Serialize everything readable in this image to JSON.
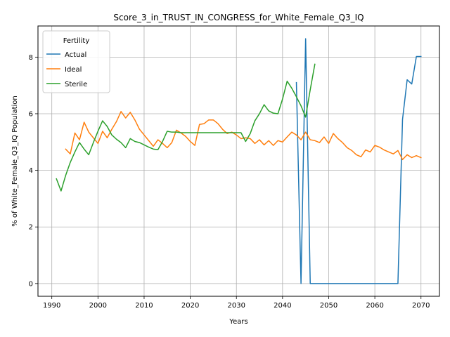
{
  "chart_data": {
    "type": "line",
    "title": "Score_3_in_TRUST_IN_CONGRESS_for_White_Female_Q3_IQ",
    "xlabel": "Years",
    "ylabel": "% of White_Female_Q3_IQ Population",
    "xlim": [
      1987,
      2074
    ],
    "ylim": [
      -0.45,
      9.1
    ],
    "x_ticks": [
      1990,
      2000,
      2010,
      2020,
      2030,
      2040,
      2050,
      2060,
      2070
    ],
    "y_ticks": [
      0,
      2,
      4,
      6,
      8
    ],
    "grid": true,
    "legend": {
      "title": "Fertility",
      "placement": "top-left"
    },
    "series": [
      {
        "name": "Actual",
        "color": "#1f77b4",
        "x": [
          2043,
          2044,
          2045,
          2046,
          2047,
          2048,
          2049,
          2050,
          2051,
          2052,
          2053,
          2054,
          2055,
          2056,
          2057,
          2058,
          2059,
          2060,
          2061,
          2062,
          2063,
          2064,
          2065,
          2066,
          2067,
          2068,
          2069,
          2070
        ],
        "y": [
          7.1,
          0.0,
          8.65,
          0.0,
          0.0,
          0.0,
          0.0,
          0.0,
          0.0,
          0.0,
          0.0,
          0.0,
          0.0,
          0.0,
          0.0,
          0.0,
          0.0,
          0.0,
          0.0,
          0.0,
          0.0,
          0.0,
          0.0,
          5.8,
          7.2,
          7.05,
          8.02,
          8.02
        ]
      },
      {
        "name": "Ideal",
        "color": "#ff7f0e",
        "x": [
          1993,
          1994,
          1995,
          1996,
          1997,
          1998,
          1999,
          2000,
          2001,
          2002,
          2003,
          2004,
          2005,
          2006,
          2007,
          2008,
          2009,
          2010,
          2011,
          2012,
          2013,
          2014,
          2015,
          2016,
          2017,
          2018,
          2019,
          2020,
          2021,
          2022,
          2023,
          2024,
          2025,
          2026,
          2027,
          2028,
          2029,
          2030,
          2031,
          2032,
          2033,
          2034,
          2035,
          2036,
          2037,
          2038,
          2039,
          2040,
          2041,
          2042,
          2043,
          2044,
          2045,
          2046,
          2047,
          2048,
          2049,
          2050,
          2051,
          2052,
          2053,
          2054,
          2055,
          2056,
          2057,
          2058,
          2059,
          2060,
          2061,
          2062,
          2063,
          2064,
          2065,
          2066,
          2067,
          2068,
          2069,
          2070
        ],
        "y": [
          4.75,
          4.58,
          5.32,
          5.08,
          5.7,
          5.35,
          5.15,
          4.95,
          5.38,
          5.15,
          5.45,
          5.72,
          6.08,
          5.85,
          6.05,
          5.78,
          5.45,
          5.25,
          5.05,
          4.85,
          5.08,
          4.95,
          4.8,
          4.98,
          5.42,
          5.32,
          5.2,
          5.02,
          4.88,
          5.62,
          5.65,
          5.78,
          5.78,
          5.65,
          5.45,
          5.3,
          5.35,
          5.25,
          5.12,
          5.15,
          5.12,
          4.95,
          5.08,
          4.9,
          5.05,
          4.88,
          5.05,
          5.0,
          5.18,
          5.35,
          5.25,
          5.08,
          5.35,
          5.08,
          5.05,
          4.98,
          5.18,
          4.95,
          5.3,
          5.12,
          4.98,
          4.8,
          4.7,
          4.55,
          4.48,
          4.72,
          4.65,
          4.88,
          4.82,
          4.72,
          4.65,
          4.58,
          4.7,
          4.38,
          4.55,
          4.45,
          4.52,
          4.45
        ]
      },
      {
        "name": "Sterile",
        "color": "#2ca02c",
        "x": [
          1991,
          1992,
          1993,
          1994,
          1995,
          1996,
          1997,
          1998,
          1999,
          2000,
          2001,
          2002,
          2003,
          2004,
          2005,
          2006,
          2007,
          2008,
          2009,
          2010,
          2011,
          2012,
          2013,
          2014,
          2015,
          2016,
          2017,
          2018,
          2019,
          2020,
          2021,
          2022,
          2023,
          2024,
          2025,
          2026,
          2027,
          2028,
          2029,
          2030,
          2031,
          2032,
          2033,
          2034,
          2035,
          2036,
          2037,
          2038,
          2039,
          2040,
          2041,
          2042,
          2043,
          2044,
          2045,
          2046,
          2047
        ],
        "y": [
          3.7,
          3.27,
          3.82,
          4.28,
          4.65,
          4.98,
          4.75,
          4.55,
          4.98,
          5.38,
          5.75,
          5.55,
          5.25,
          5.1,
          4.98,
          4.8,
          5.12,
          5.02,
          4.98,
          4.9,
          4.82,
          4.75,
          4.73,
          5.02,
          5.38,
          5.35,
          5.35,
          5.33,
          5.33,
          5.33,
          5.33,
          5.33,
          5.33,
          5.33,
          5.33,
          5.33,
          5.33,
          5.33,
          5.33,
          5.33,
          5.33,
          5.02,
          5.3,
          5.75,
          6.0,
          6.32,
          6.1,
          6.02,
          6.0,
          6.52,
          7.15,
          6.9,
          6.6,
          6.28,
          5.88,
          6.85,
          7.75
        ]
      }
    ]
  }
}
